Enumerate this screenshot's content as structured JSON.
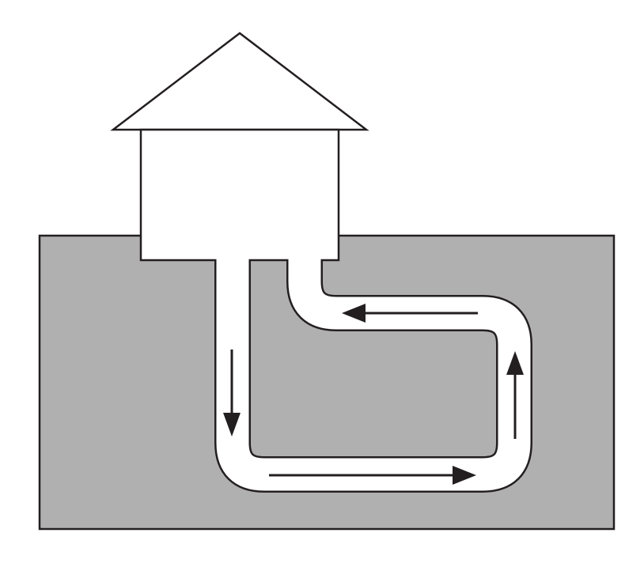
{
  "diagram": {
    "type": "ground-loop-illustration",
    "text": [],
    "colors": {
      "background": "#ffffff",
      "ground": "#b0b0b1",
      "outline": "#231f20",
      "pipe": "#ffffff",
      "arrow": "#231f20"
    },
    "flow": [
      {
        "segment": "left-vertical",
        "direction": "down"
      },
      {
        "segment": "bottom-horizontal",
        "direction": "right"
      },
      {
        "segment": "right-vertical",
        "direction": "up"
      },
      {
        "segment": "top-horizontal",
        "direction": "left"
      }
    ]
  }
}
